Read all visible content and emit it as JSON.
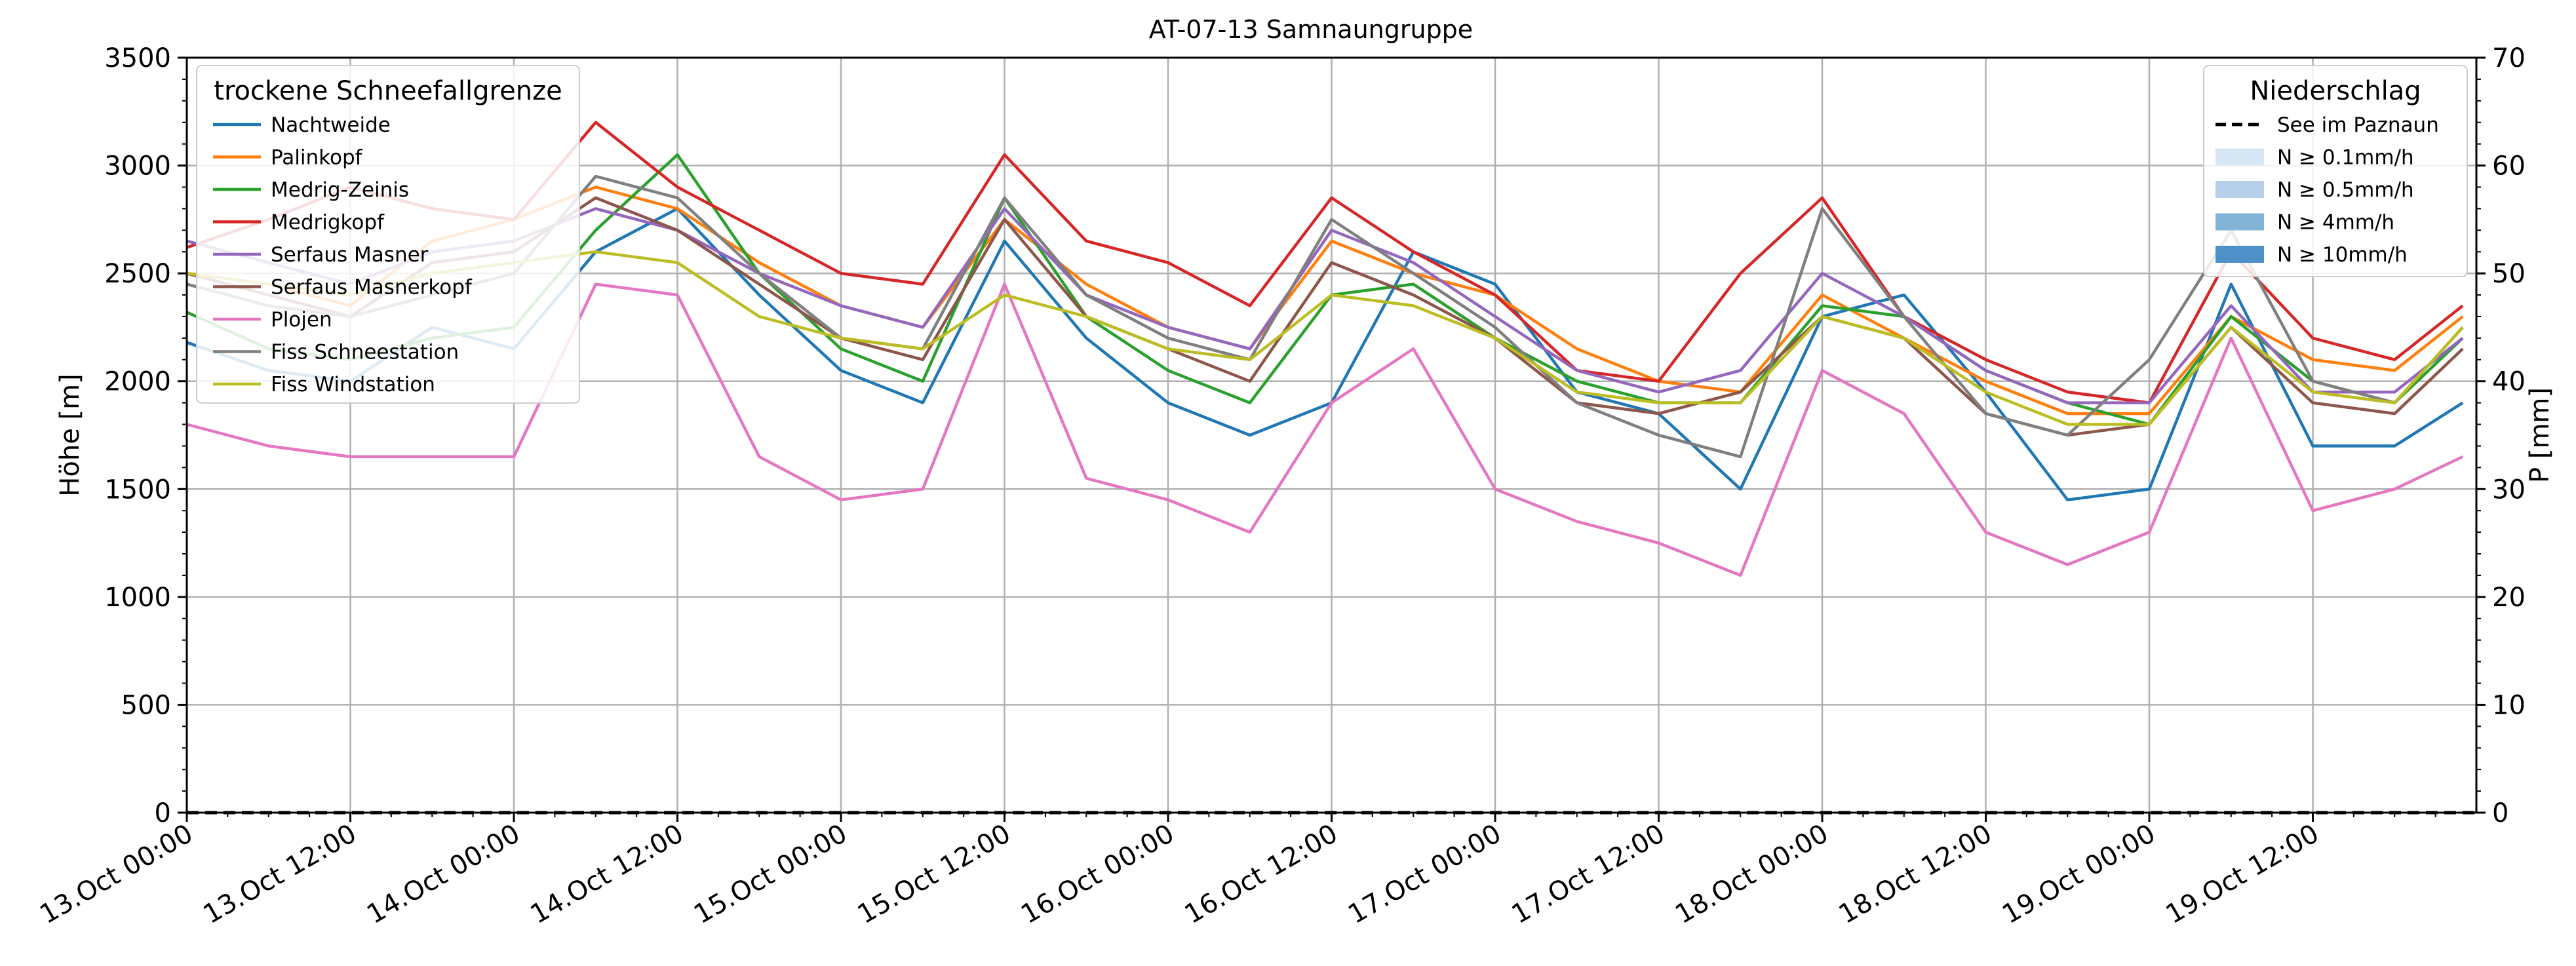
{
  "chart_data": {
    "type": "line",
    "title": "AT-07-13 Samnaungruppe",
    "ylabel": "Höhe [m]",
    "ylabel_right": "P [mm]",
    "ylim": [
      0,
      3500
    ],
    "ylim_right": [
      0,
      70
    ],
    "yticks": [
      0,
      500,
      1000,
      1500,
      2000,
      2500,
      3000,
      3500
    ],
    "yticks_right": [
      0,
      10,
      20,
      30,
      40,
      50,
      60,
      70
    ],
    "xlim": [
      "2024-10-13T00:00",
      "2024-10-20T00:00"
    ],
    "xticks": [
      "13.Oct 00:00",
      "13.Oct 12:00",
      "14.Oct 00:00",
      "14.Oct 12:00",
      "15.Oct 00:00",
      "15.Oct 12:00",
      "16.Oct 00:00",
      "16.Oct 12:00",
      "17.Oct 00:00",
      "17.Oct 12:00",
      "18.Oct 00:00",
      "18.Oct 12:00",
      "19.Oct 00:00",
      "19.Oct 12:00"
    ],
    "grid": true,
    "legend_snowline": {
      "title": "trockene Schneefallgrenze",
      "placement": "top-left"
    },
    "legend_precip": {
      "title": "Niederschlag",
      "placement": "top-right",
      "entries": [
        {
          "label": "See im Paznaun",
          "style": "dashed",
          "color": "#000000"
        },
        {
          "label": "N ≥ 0.1mm/h",
          "style": "patch",
          "color": "#d6e6f4"
        },
        {
          "label": "N ≥ 0.5mm/h",
          "style": "patch",
          "color": "#b5d0e8"
        },
        {
          "label": "N ≥ 4mm/h",
          "style": "patch",
          "color": "#82b4d8"
        },
        {
          "label": "N ≥ 10mm/h",
          "style": "patch",
          "color": "#4e91c8"
        }
      ]
    },
    "precip_series": {
      "name": "See im Paznaun",
      "values": [
        0,
        0
      ]
    },
    "x_hours": [
      0,
      6,
      12,
      18,
      24,
      30,
      36,
      42,
      48,
      54,
      60,
      66,
      72,
      78,
      84,
      90,
      96,
      102,
      108,
      114,
      120,
      126,
      132,
      138,
      144,
      150,
      156,
      162,
      167
    ],
    "series": [
      {
        "name": "Nachtweide",
        "color": "#1f77b4",
        "values": [
          2180,
          2050,
          2000,
          2250,
          2150,
          2600,
          2800,
          2400,
          2050,
          1900,
          2650,
          2200,
          1900,
          1750,
          1900,
          2600,
          2450,
          1950,
          1850,
          1500,
          2300,
          2400,
          1950,
          1450,
          1500,
          2450,
          1700,
          1700,
          1900
        ]
      },
      {
        "name": "Palinkopf",
        "color": "#ff7f0e",
        "values": [
          2500,
          2450,
          2350,
          2650,
          2750,
          2900,
          2800,
          2550,
          2350,
          2250,
          2750,
          2450,
          2250,
          2150,
          2650,
          2500,
          2400,
          2150,
          2000,
          1950,
          2400,
          2200,
          2000,
          1850,
          1850,
          2300,
          2100,
          2050,
          2300
        ]
      },
      {
        "name": "Medrig-Zeinis",
        "color": "#2ca02c",
        "values": [
          2320,
          2150,
          2100,
          2200,
          2250,
          2700,
          3050,
          2500,
          2150,
          2000,
          2850,
          2300,
          2050,
          1900,
          2400,
          2450,
          2200,
          2000,
          1900,
          1900,
          2350,
          2300,
          2050,
          1900,
          1800,
          2300,
          2000,
          1900,
          2200
        ]
      },
      {
        "name": "Medrigkopf",
        "color": "#d62728",
        "values": [
          2620,
          2750,
          2900,
          2800,
          2750,
          3200,
          2900,
          2700,
          2500,
          2450,
          3050,
          2650,
          2550,
          2350,
          2850,
          2600,
          2400,
          2050,
          2000,
          2500,
          2850,
          2300,
          2100,
          1950,
          1900,
          2600,
          2200,
          2100,
          2350
        ]
      },
      {
        "name": "Serfaus Masner",
        "color": "#9467bd",
        "values": [
          2650,
          2550,
          2450,
          2600,
          2650,
          2800,
          2700,
          2500,
          2350,
          2250,
          2800,
          2400,
          2250,
          2150,
          2700,
          2550,
          2300,
          2050,
          1950,
          2050,
          2500,
          2300,
          2050,
          1900,
          1900,
          2350,
          1950,
          1950,
          2200
        ]
      },
      {
        "name": "Serfaus Masnerkopf",
        "color": "#8c564b",
        "values": [
          2500,
          2400,
          2300,
          2550,
          2600,
          2850,
          2700,
          2450,
          2200,
          2100,
          2750,
          2300,
          2150,
          2000,
          2550,
          2400,
          2200,
          1900,
          1850,
          1950,
          2300,
          2200,
          1850,
          1750,
          1800,
          2250,
          1900,
          1850,
          2150
        ]
      },
      {
        "name": "Plojen",
        "color": "#e377c2",
        "values": [
          1800,
          1700,
          1650,
          1650,
          1650,
          2450,
          2400,
          1650,
          1450,
          1500,
          2450,
          1550,
          1450,
          1300,
          1900,
          2150,
          1500,
          1350,
          1250,
          1100,
          2050,
          1850,
          1300,
          1150,
          1300,
          2200,
          1400,
          1500,
          1650
        ]
      },
      {
        "name": "Fiss Schneestation",
        "color": "#7f7f7f",
        "values": [
          2450,
          2350,
          2300,
          2400,
          2500,
          2950,
          2850,
          2500,
          2200,
          2150,
          2850,
          2400,
          2200,
          2100,
          2750,
          2500,
          2250,
          1900,
          1750,
          1650,
          2800,
          2300,
          1850,
          1750,
          2100,
          2700,
          2000,
          1900,
          2250
        ]
      },
      {
        "name": "Fiss Windstation",
        "color": "#bcbd22",
        "values": [
          2500,
          2450,
          2400,
          2500,
          2550,
          2600,
          2550,
          2300,
          2200,
          2150,
          2400,
          2300,
          2150,
          2100,
          2400,
          2350,
          2200,
          1950,
          1900,
          1900,
          2300,
          2200,
          1950,
          1800,
          1800,
          2250,
          1950,
          1900,
          2250
        ]
      }
    ]
  }
}
